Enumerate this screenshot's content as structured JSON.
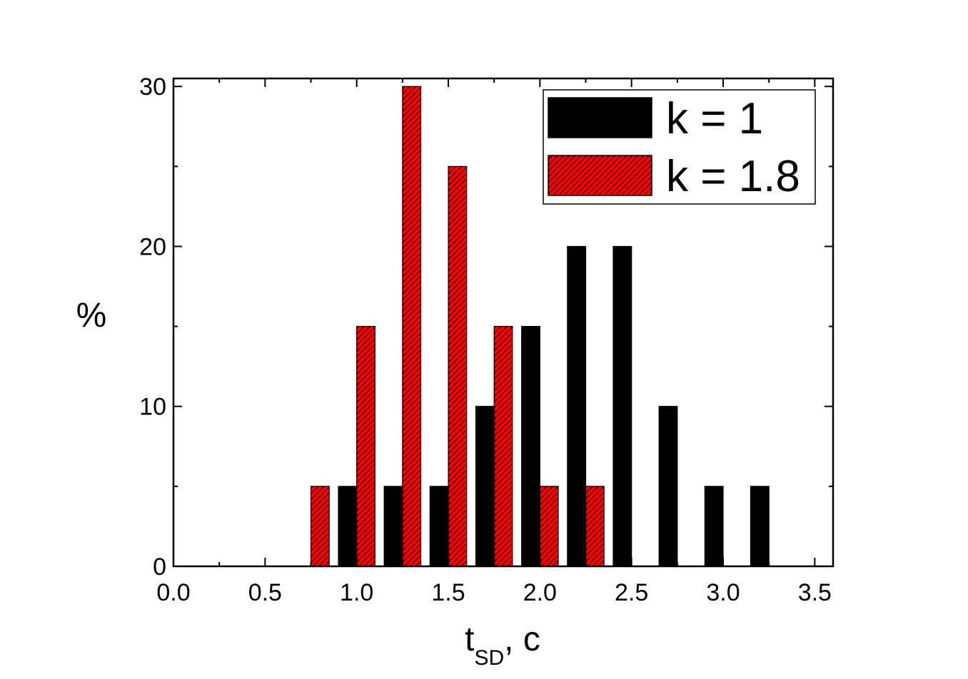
{
  "chart_data": {
    "type": "bar",
    "xlabel": {
      "main": "t",
      "sub": "SD",
      "suffix": ", c"
    },
    "ylabel": "%",
    "xlim": [
      0.0,
      3.6
    ],
    "ylim": [
      0,
      30.5
    ],
    "xticks": [
      "0.0",
      "0.5",
      "1.0",
      "1.5",
      "2.0",
      "2.5",
      "3.0",
      "3.5"
    ],
    "yticks": [
      "0",
      "10",
      "20",
      "30"
    ],
    "bar_width": 0.1,
    "grid": false,
    "legend_position": "top-right",
    "series": [
      {
        "name": "k = 1",
        "color": "#000000",
        "pattern": "solid",
        "points": [
          {
            "x": 0.95,
            "y": 5
          },
          {
            "x": 1.2,
            "y": 5
          },
          {
            "x": 1.45,
            "y": 5
          },
          {
            "x": 1.7,
            "y": 10
          },
          {
            "x": 1.95,
            "y": 15
          },
          {
            "x": 2.2,
            "y": 20
          },
          {
            "x": 2.45,
            "y": 20
          },
          {
            "x": 2.7,
            "y": 10
          },
          {
            "x": 2.95,
            "y": 5
          },
          {
            "x": 3.2,
            "y": 5
          }
        ]
      },
      {
        "name": "k = 1.8",
        "color": "#ff0000",
        "pattern": "hatched",
        "points": [
          {
            "x": 0.8,
            "y": 5
          },
          {
            "x": 1.05,
            "y": 15
          },
          {
            "x": 1.3,
            "y": 30
          },
          {
            "x": 1.55,
            "y": 25
          },
          {
            "x": 1.8,
            "y": 15
          },
          {
            "x": 2.05,
            "y": 5
          },
          {
            "x": 2.3,
            "y": 5
          }
        ]
      }
    ]
  }
}
